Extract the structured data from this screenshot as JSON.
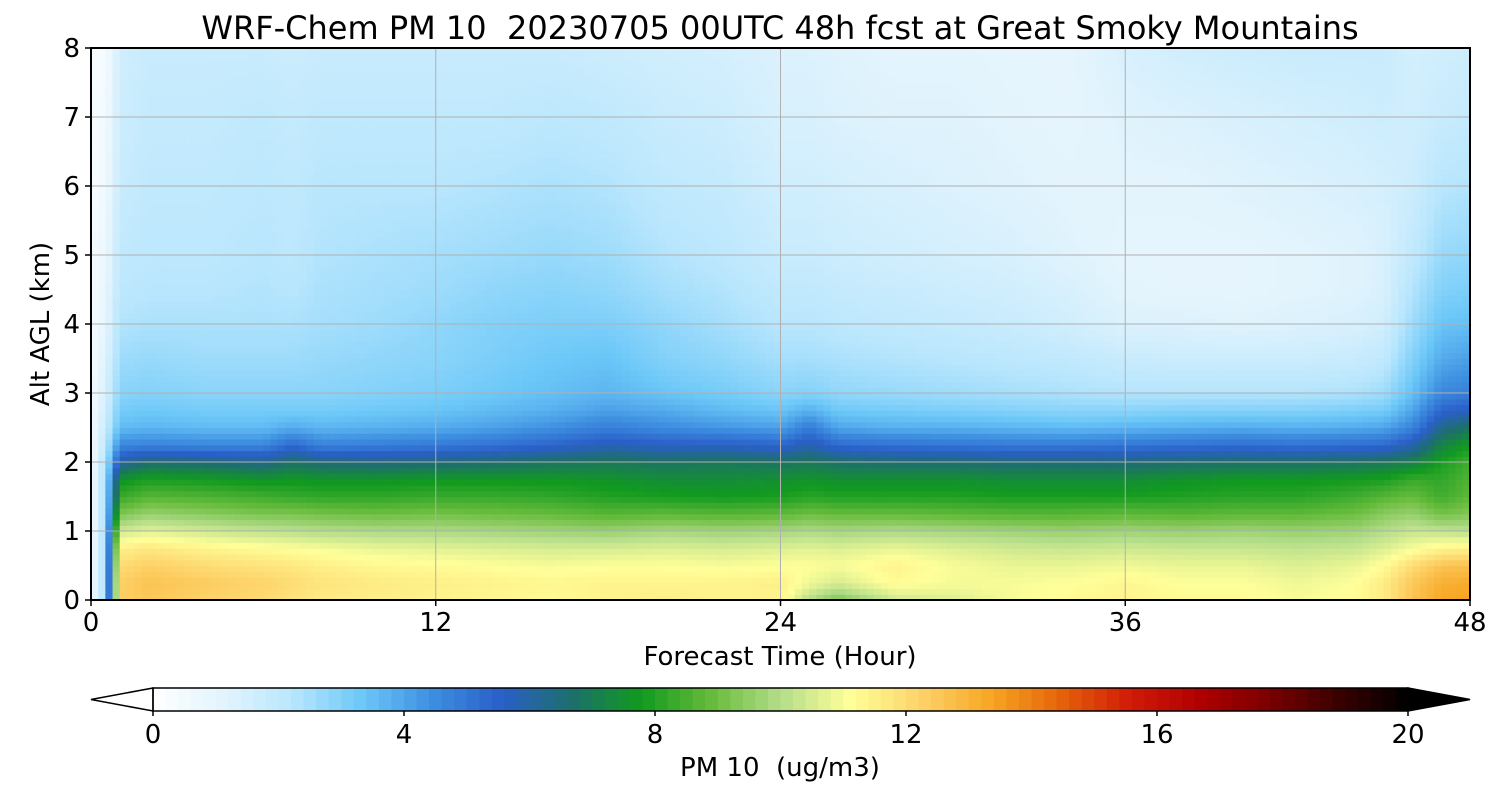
{
  "chart_data": {
    "type": "heatmap",
    "title": "WRF-Chem PM 10  20230705 00UTC 48h fcst at Great Smoky Mountains",
    "xlabel": "Forecast Time (Hour)",
    "ylabel": "Alt AGL (km)",
    "xlim": [
      0,
      48
    ],
    "ylim": [
      0,
      8
    ],
    "xticks": [
      0,
      12,
      24,
      36,
      48
    ],
    "yticks": [
      0,
      1,
      2,
      3,
      4,
      5,
      6,
      7,
      8
    ],
    "grid": true,
    "colorbar": {
      "label": "PM 10  (ug/m3)",
      "ticks": [
        0,
        4,
        8,
        12,
        16,
        20
      ],
      "range": [
        0,
        20
      ],
      "extend": "both",
      "orientation": "horizontal",
      "colors": [
        "#ffffff",
        "#e3f4fd",
        "#b8e6fd",
        "#6cc8f8",
        "#3d8ee0",
        "#2a5fc9",
        "#1d6f6c",
        "#119a1f",
        "#66bb3b",
        "#b4dd8a",
        "#ffff99",
        "#fdd36a",
        "#f7a724",
        "#e6640a",
        "#d11c08",
        "#b00000",
        "#7a0000",
        "#3a0000",
        "#000000"
      ]
    },
    "x": [
      0,
      0.5,
      1,
      2,
      4,
      6,
      7,
      8,
      10,
      12,
      14,
      16,
      18,
      20,
      22,
      24,
      25,
      26,
      28,
      30,
      32,
      34,
      36,
      38,
      40,
      42,
      44,
      45,
      46,
      47,
      48
    ],
    "y": [
      0,
      0.25,
      0.5,
      0.75,
      1.0,
      1.25,
      1.5,
      1.75,
      2.0,
      2.25,
      2.5,
      2.75,
      3.0,
      3.5,
      4.0,
      4.5,
      5.0,
      6.0,
      7.0,
      8.0
    ],
    "profiles": [
      [
        0.5,
        0.5,
        0.5,
        0.5,
        0.5,
        0.5,
        0.5,
        0.5,
        0.5,
        0.5,
        0.5,
        0.5,
        0.5,
        0.4,
        0.4,
        0.4,
        0.4,
        0.3,
        0.3,
        0.3
      ],
      [
        2.5,
        2.5,
        2.5,
        2.5,
        2.5,
        2.5,
        2.5,
        2.5,
        2.3,
        2.0,
        1.8,
        1.6,
        1.4,
        1.2,
        1.0,
        0.9,
        0.8,
        0.6,
        0.5,
        0.4
      ],
      [
        12.3,
        12.3,
        12.0,
        11.5,
        10.4,
        9.2,
        8.3,
        7.6,
        6.0,
        4.6,
        3.6,
        3.2,
        2.9,
        2.6,
        2.3,
        2.1,
        2.0,
        1.8,
        1.7,
        1.6
      ],
      [
        12.5,
        12.6,
        12.3,
        11.7,
        10.7,
        9.6,
        8.7,
        7.9,
        6.6,
        4.7,
        3.7,
        3.3,
        3.0,
        2.7,
        2.4,
        2.2,
        2.1,
        2.0,
        1.9,
        1.8
      ],
      [
        12.2,
        12.4,
        12.0,
        11.4,
        10.4,
        9.4,
        8.6,
        7.8,
        6.5,
        4.6,
        3.6,
        3.2,
        2.9,
        2.6,
        2.4,
        2.2,
        2.1,
        2.0,
        1.9,
        1.8
      ],
      [
        12.0,
        12.2,
        11.8,
        11.2,
        10.2,
        9.2,
        8.4,
        7.6,
        6.3,
        4.6,
        3.6,
        3.2,
        2.9,
        2.6,
        2.4,
        2.3,
        2.2,
        2.1,
        2.0,
        1.8
      ],
      [
        11.8,
        12.0,
        11.7,
        11.1,
        10.1,
        9.2,
        8.3,
        7.7,
        6.7,
        5.3,
        3.9,
        3.2,
        2.9,
        2.6,
        2.4,
        2.2,
        2.1,
        2.0,
        1.9,
        1.7
      ],
      [
        11.6,
        11.8,
        11.5,
        11.0,
        10.0,
        9.1,
        8.2,
        7.6,
        6.5,
        4.7,
        3.7,
        3.2,
        2.9,
        2.7,
        2.5,
        2.4,
        2.3,
        2.2,
        2.0,
        1.8
      ],
      [
        11.5,
        11.6,
        11.3,
        10.8,
        9.9,
        9.0,
        8.2,
        7.6,
        6.4,
        4.8,
        3.8,
        3.3,
        3.0,
        2.8,
        2.6,
        2.5,
        2.4,
        2.2,
        2.0,
        1.8
      ],
      [
        11.4,
        11.5,
        11.2,
        10.7,
        9.9,
        9.1,
        8.3,
        7.7,
        6.5,
        4.9,
        3.9,
        3.4,
        3.1,
        2.9,
        2.8,
        2.6,
        2.5,
        2.2,
        2.0,
        1.8
      ],
      [
        11.3,
        11.4,
        11.1,
        10.6,
        9.8,
        9.0,
        8.3,
        7.7,
        6.6,
        5.1,
        4.1,
        3.6,
        3.3,
        3.1,
        3.0,
        2.8,
        2.6,
        2.3,
        2.0,
        1.8
      ],
      [
        11.2,
        11.3,
        11.0,
        10.5,
        9.7,
        8.9,
        8.2,
        7.7,
        6.8,
        5.4,
        4.4,
        3.8,
        3.5,
        3.3,
        3.1,
        2.9,
        2.7,
        2.4,
        2.1,
        1.8
      ],
      [
        11.4,
        11.4,
        11.1,
        10.5,
        9.6,
        8.7,
        8.0,
        7.6,
        6.9,
        5.8,
        4.8,
        4.1,
        3.7,
        3.4,
        3.1,
        2.8,
        2.6,
        2.3,
        2.0,
        1.7
      ],
      [
        11.5,
        11.4,
        11.1,
        10.6,
        9.8,
        8.8,
        7.9,
        7.4,
        6.8,
        5.6,
        4.5,
        3.9,
        3.4,
        3.0,
        2.8,
        2.5,
        2.3,
        2.0,
        1.8,
        1.6
      ],
      [
        11.4,
        11.4,
        11.0,
        10.5,
        9.7,
        8.7,
        7.8,
        7.4,
        6.9,
        5.6,
        4.3,
        3.6,
        3.2,
        2.8,
        2.5,
        2.3,
        2.1,
        1.9,
        1.7,
        1.5
      ],
      [
        11.4,
        11.5,
        11.1,
        10.6,
        9.8,
        8.8,
        7.9,
        7.5,
        6.8,
        5.4,
        4.1,
        3.4,
        2.9,
        2.5,
        2.2,
        2.0,
        1.8,
        1.6,
        1.4,
        1.3
      ],
      [
        10.0,
        10.9,
        11.1,
        10.7,
        9.9,
        9.0,
        8.1,
        7.6,
        6.9,
        5.9,
        4.9,
        3.8,
        3.0,
        2.5,
        2.2,
        2.0,
        1.8,
        1.6,
        1.4,
        1.3
      ],
      [
        9.2,
        10.5,
        11.0,
        10.6,
        9.8,
        8.9,
        8.0,
        7.5,
        6.7,
        5.3,
        4.0,
        3.3,
        2.8,
        2.4,
        2.1,
        1.9,
        1.7,
        1.5,
        1.3,
        1.2
      ],
      [
        10.4,
        11.2,
        11.4,
        10.8,
        9.9,
        8.9,
        8.0,
        7.5,
        6.6,
        5.1,
        3.8,
        3.2,
        2.7,
        2.3,
        2.0,
        1.8,
        1.6,
        1.4,
        1.2,
        1.1
      ],
      [
        10.6,
        11.0,
        11.0,
        10.6,
        9.8,
        8.8,
        8.0,
        7.5,
        6.6,
        5.0,
        3.8,
        3.1,
        2.6,
        2.2,
        1.9,
        1.7,
        1.5,
        1.3,
        1.2,
        1.1
      ],
      [
        11.0,
        11.0,
        10.8,
        10.4,
        9.7,
        8.7,
        7.9,
        7.4,
        6.5,
        4.9,
        3.7,
        3.0,
        2.5,
        2.1,
        1.8,
        1.6,
        1.4,
        1.2,
        1.1,
        1.0
      ],
      [
        11.2,
        11.1,
        10.8,
        10.3,
        9.6,
        8.7,
        7.9,
        7.4,
        6.5,
        4.9,
        3.6,
        2.9,
        2.4,
        2.0,
        1.6,
        1.4,
        1.2,
        1.1,
        1.0,
        1.0
      ],
      [
        11.4,
        11.3,
        10.9,
        10.4,
        9.7,
        8.8,
        7.9,
        7.4,
        6.5,
        5.0,
        3.7,
        2.9,
        2.3,
        1.8,
        1.3,
        1.1,
        1.0,
        1.1,
        1.2,
        1.4
      ],
      [
        11.2,
        11.1,
        10.8,
        10.3,
        9.6,
        8.7,
        8.0,
        7.6,
        6.6,
        5.1,
        3.8,
        3.0,
        2.3,
        1.7,
        1.3,
        1.0,
        1.0,
        1.1,
        1.3,
        1.6
      ],
      [
        11.2,
        11.1,
        10.8,
        10.3,
        9.7,
        8.8,
        8.1,
        7.7,
        6.7,
        5.2,
        3.9,
        3.0,
        2.3,
        1.7,
        1.2,
        1.0,
        1.0,
        1.2,
        1.4,
        1.7
      ],
      [
        11.0,
        10.9,
        10.6,
        10.2,
        9.6,
        8.8,
        8.1,
        7.7,
        6.7,
        5.1,
        3.8,
        3.0,
        2.3,
        1.7,
        1.3,
        1.1,
        1.1,
        1.3,
        1.5,
        1.8
      ],
      [
        11.2,
        11.1,
        10.8,
        10.3,
        9.7,
        9.0,
        8.4,
        7.8,
        6.8,
        5.2,
        3.9,
        3.1,
        2.4,
        1.8,
        1.4,
        1.2,
        1.2,
        1.4,
        1.6,
        1.8
      ],
      [
        11.6,
        11.6,
        11.2,
        10.6,
        10.0,
        9.4,
        8.7,
        7.9,
        6.9,
        5.3,
        4.0,
        3.2,
        2.6,
        2.0,
        1.6,
        1.4,
        1.4,
        1.5,
        1.7,
        1.8
      ],
      [
        12.6,
        12.5,
        12.0,
        11.0,
        10.3,
        9.6,
        8.9,
        8.3,
        7.1,
        5.9,
        4.7,
        4.0,
        3.5,
        3.0,
        2.6,
        2.3,
        2.0,
        1.7,
        1.6,
        1.5
      ],
      [
        13.3,
        13.1,
        12.6,
        11.4,
        10.2,
        9.1,
        8.4,
        8.2,
        7.9,
        7.2,
        6.3,
        5.4,
        4.6,
        3.9,
        3.4,
        3.0,
        2.7,
        2.2,
        1.8,
        1.6
      ],
      [
        13.4,
        13.2,
        12.7,
        11.5,
        10.1,
        9.3,
        8.8,
        8.6,
        8.4,
        7.8,
        6.8,
        5.7,
        4.8,
        4.1,
        3.5,
        3.1,
        2.8,
        2.3,
        1.9,
        1.7
      ]
    ]
  }
}
